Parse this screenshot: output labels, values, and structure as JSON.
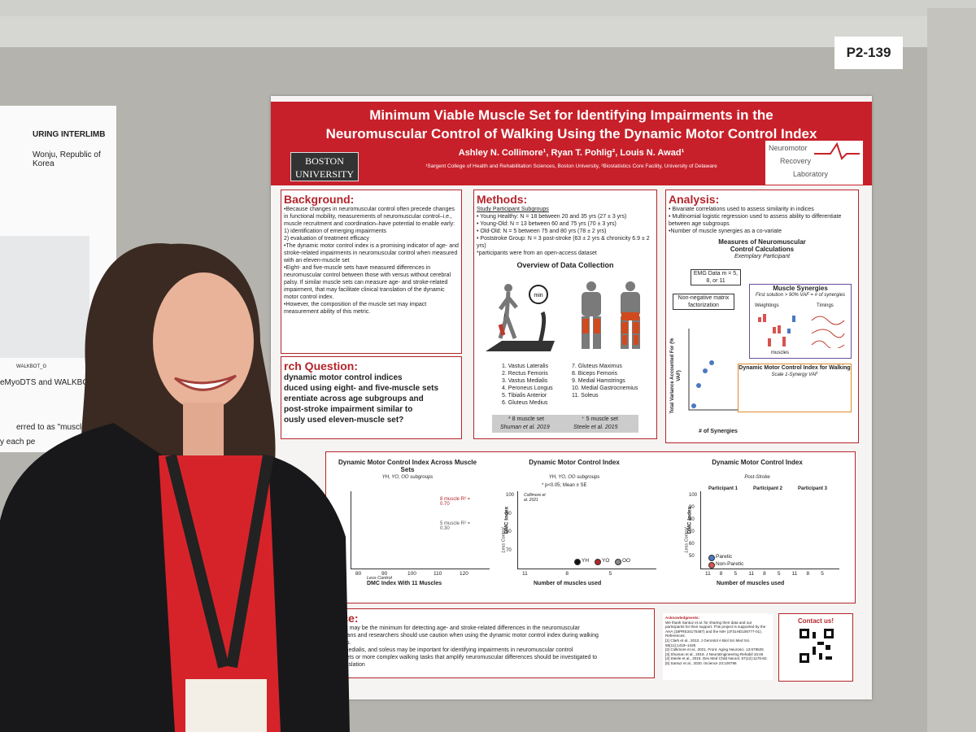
{
  "board_label": "P2-139",
  "left_poster": {
    "lines": [
      "URING INTERLIMB",
      "Wonju, Republic of Korea",
      "WALKBOT_G",
      "eMyoDTS and WALKBOT_G",
      "erred to as \"muscle",
      "y each pe"
    ]
  },
  "poster": {
    "title_lines": [
      "Minimum Viable Muscle Set for Identifying Impairments in the",
      "Neuromuscular Control of Walking Using the Dynamic Motor Control Index"
    ],
    "institution": "BOSTON UNIVERSITY",
    "authors": "Ashley N. Collimore¹, Ryan T. Pohlig², Louis N. Awad¹",
    "affiliations": "¹Sargent College of Health and Rehabilitation Sciences, Boston University, ²Biostatistics Core Facility, University of Delaware",
    "lab": [
      "Neuromotor",
      "Recovery",
      "Laboratory"
    ],
    "background": {
      "heading": "Background:",
      "lines": [
        "•Because changes in neuromuscular control often precede changes in functional mobility, measurements of neuromuscular control–i.e., muscle recruitment and coordination–have potential to enable early:",
        "1) identification of emerging impairments",
        "2) evaluation of treatment efficacy",
        "•The dynamic motor control index is a promising indicator of age- and stroke-related impairments in neuromuscular control when measured with an eleven-muscle set",
        "•Eight- and five-muscle sets have measured differences in neuromuscular control between those with versus without cerebral palsy. If similar muscle sets can measure age- and stroke-related impairment, that may facilitate clinical translation of the dynamic motor control index.",
        "•However, the composition of the muscle set may impact measurement ability of this metric."
      ]
    },
    "research_question": {
      "heading": "rch Question:",
      "lines": [
        "dynamic motor control indices",
        "duced using eight- and five-muscle sets",
        "erentiate across age subgroups and",
        "post-stroke impairment similar to",
        "ously used eleven-muscle set?"
      ]
    },
    "methods": {
      "heading": "Methods:",
      "subheading": "Study Participant Subgroups",
      "lines": [
        "• Young Healthy: N = 18 between 20 and 35 yrs (27 ± 3 yrs)",
        "• Young-Old: N = 13 between 60 and 75 yrs (70 ± 3 yrs)",
        "• Old-Old: N = 5 between 75 and 80 yrs (78 ± 2 yrs)",
        "• Poststroke Group: N = 3 post-stroke (63 ± 2 yrs & chronicity 6.9 ± 2 yrs)",
        "*participants were from an open-access dataset"
      ],
      "overview": "Overview of Data Collection",
      "timer": "min",
      "muscles_left": [
        "1. Vastus Lateralis",
        "2. Rectus Femoris",
        "3. Vastus Medialis",
        "4. Peroneus Longus",
        "5. Tibialis Anterior",
        "6. Gluteus Medius"
      ],
      "muscles_right": [
        "7. Gluteus Maximus",
        "8. Biceps Femoris",
        "9. Medial Hamstrings",
        "10. Medial Gastrocnemius",
        "11. Soleus"
      ],
      "sets": [
        "* 8 muscle set",
        "⁺ 5 muscle set"
      ],
      "sources": [
        "Shuman et al. 2019",
        "Steele et al. 2015"
      ]
    },
    "analysis": {
      "heading": "Analysis:",
      "lines": [
        "• Bivariate correlations used to assess similarity in indices",
        "• Multinomial logistic regression used to assess ability to differentiate between age subgroups",
        "•Number of muscle synergies as a co-variate"
      ],
      "subtitle": "Measures of Neuromuscular Control Calculations",
      "subtitle2": "Exemplary Participant",
      "emg": "EMG Data m = 5, 8, or 11",
      "nnmf": "Non-negative matrix factorization",
      "synergies": "Muscle Synergies",
      "synergies_note": "First solution > 90% VAF = # of synergies",
      "weightings": "Weightings",
      "timings": "Timings",
      "muscles": "muscles",
      "dmc_title": "Dynamic Motor Control Index for Walking",
      "dmc_scale": "Scale 1-Synergy VAF",
      "y_label": "Total Variance Accounted For (% VAF)",
      "x_label": "# of Synergies"
    },
    "figures": [
      {
        "title": "Dynamic Motor Control Index Across Muscle Sets",
        "subtitle": "YH, YO, OO subgroups",
        "notes": [
          "8 muscle R² = 0.70",
          "5 muscle R² = 0.30"
        ],
        "xticks": [
          80,
          90,
          100,
          110,
          120
        ],
        "x_label": "DMC Index With 11 Muscles",
        "arrow": "Less Control"
      },
      {
        "title": "Dynamic Motor Control Index",
        "subtitle": "YH, YO, OO subgroups",
        "note": "* p<0.05; Mean ± SE",
        "source": "Collimore et al. 2021",
        "yticks": [
          100,
          90,
          80,
          70
        ],
        "y_label": "DMC Index",
        "arrow": "Less Control",
        "xticks": [
          "11",
          "8",
          "5"
        ],
        "x_label": "Number of muscles used",
        "legend": [
          "YH",
          "YO",
          "OO"
        ]
      },
      {
        "title": "Dynamic Motor Control Index",
        "subtitle": "Post-Stroke",
        "panels": [
          "Participant 1",
          "Participant 2",
          "Participant 3"
        ],
        "yticks": [
          100,
          90,
          80,
          70,
          60,
          50
        ],
        "y_label": "DMC Index",
        "arrow": "Less Control",
        "xticks": [
          "11",
          "8",
          "5",
          "11",
          "8",
          "5",
          "11",
          "8",
          "5"
        ],
        "x_label": "Number of muscles used",
        "legend": [
          "Paretic",
          "Non-Paretic"
        ]
      }
    ],
    "conclusion": {
      "heading": "ance:",
      "lines": [
        "scle set may be the minimum for detecting age- and stroke-related differences in the neuromuscular",
        ": Clinicians and researchers should use caution when using the dynamic motor control index during walking",
        "muscles.",
        "astus medialis, and soleus may be important for identifying impairments in neuromuscular control",
        "uscle sets or more complex walking tasks that amplify neuromuscular differences should be investigated to",
        "ical translation"
      ]
    },
    "acknowledgments": {
      "heading": "Acknowledgments:",
      "lines": [
        "We thank Santuz et al. for sharing their data and our participants for their support. This project is supported by the AHA (18PRE34170487) and the NIH (1F31HD106777-01).",
        "References:",
        "[1] Clark et al., 2013. J Gerontol A Biol Sci Med Sci. 68(11):1419–1425",
        "[2] Collimore et al., 2021. Front. Aging Neurosci. 13:678525",
        "[3] Shuman et al., 2019. J NeuroEngineering Rehabil 16:46",
        "[4] Steele et al., 2015. Dev Med Child Neurol. 57(12):1176-82.",
        "[5] Santuz et al., 2020. iScience 23:100796"
      ]
    },
    "contact": "Contact us!"
  }
}
